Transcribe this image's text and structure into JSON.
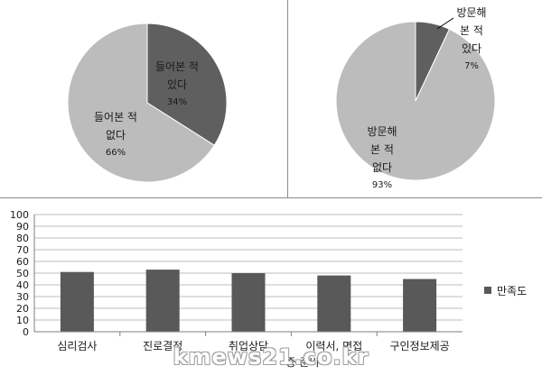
{
  "chart_data": [
    {
      "type": "pie",
      "slices": [
        {
          "label_lines": [
            "들어본 적",
            "있다"
          ],
          "pct_text": "34%",
          "value": 34,
          "color": "#5f5f5f"
        },
        {
          "label_lines": [
            "들어본 적",
            "없다"
          ],
          "pct_text": "66%",
          "value": 66,
          "color": "#bcbcbc"
        }
      ]
    },
    {
      "type": "pie",
      "slices": [
        {
          "label_lines": [
            "방문해",
            "본 적",
            "있다"
          ],
          "pct_text": "7%",
          "value": 7,
          "color": "#5f5f5f"
        },
        {
          "label_lines": [
            "방문해",
            "본 적",
            "없다"
          ],
          "pct_text": "93%",
          "value": 93,
          "color": "#bcbcbc"
        }
      ]
    },
    {
      "type": "bar",
      "categories": [
        "심리검사",
        "진로결정",
        "취업상담",
        "이력서, 면접",
        "구인정보제공"
      ],
      "series": [
        {
          "name": "만족도",
          "values": [
            51,
            53,
            50,
            48,
            45
          ],
          "color": "#595959"
        }
      ],
      "ylim": [
        0,
        100
      ],
      "yticks": [
        "0",
        "10",
        "20",
        "30",
        "40",
        "50",
        "60",
        "70",
        "80",
        "90",
        "100"
      ],
      "xlabel": "중 준비",
      "grid": true,
      "legend": "right"
    }
  ],
  "watermark": "kmews21.co.kr"
}
